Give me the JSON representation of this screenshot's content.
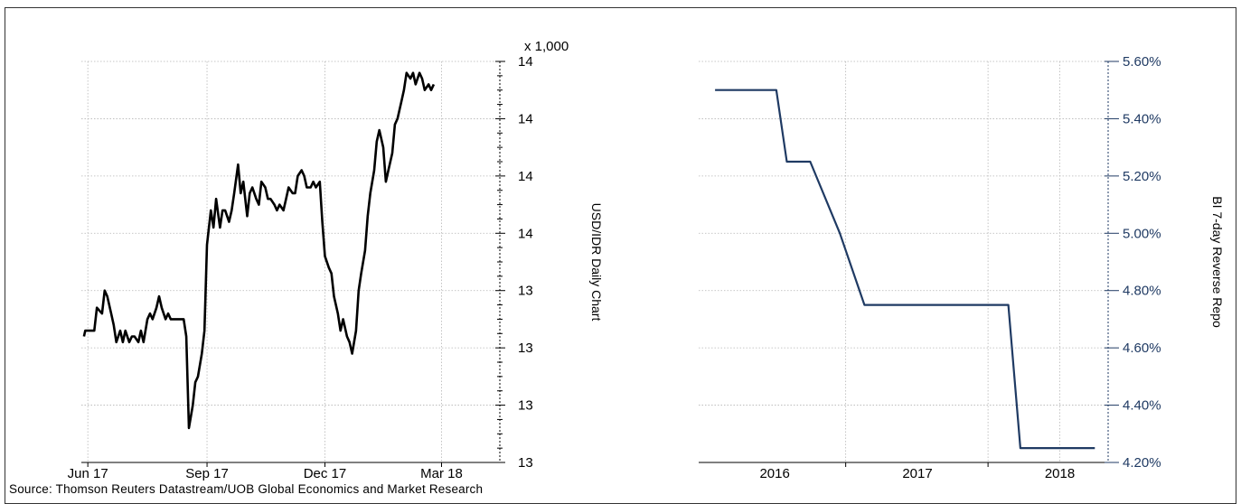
{
  "source": "Source: Thomson Reuters Datastream/UOB Global Economics and Market Research",
  "chart_data": [
    {
      "type": "line",
      "ylabel": "USD/IDR Daily Chart",
      "y_multiplier": "x 1,000",
      "x_ticks": [
        "Jun 17",
        "Sep 17",
        "Dec 17",
        "Mar 18"
      ],
      "y_ticks": [
        "14",
        "14",
        "14",
        "14",
        "13",
        "13",
        "13",
        "13"
      ],
      "ylim": [
        13.15,
        13.85
      ],
      "grid": true,
      "line_color": "#000000",
      "series": [
        {
          "x": [
            "2017-05-29",
            "2017-05-30",
            "2017-06-01",
            "2017-06-06",
            "2017-06-08",
            "2017-06-12",
            "2017-06-14",
            "2017-06-16",
            "2017-06-19",
            "2017-06-21",
            "2017-06-23",
            "2017-06-26",
            "2017-06-28",
            "2017-06-30",
            "2017-07-03",
            "2017-07-05",
            "2017-07-07",
            "2017-07-10",
            "2017-07-12",
            "2017-07-14",
            "2017-07-17",
            "2017-07-19",
            "2017-07-21",
            "2017-07-24",
            "2017-07-26",
            "2017-07-28",
            "2017-07-31",
            "2017-08-02",
            "2017-08-04",
            "2017-08-07",
            "2017-08-09",
            "2017-08-11",
            "2017-08-14",
            "2017-08-16",
            "2017-08-18",
            "2017-08-21",
            "2017-08-23",
            "2017-08-25",
            "2017-08-28",
            "2017-08-30",
            "2017-09-01",
            "2017-09-04",
            "2017-09-06",
            "2017-09-08",
            "2017-09-11",
            "2017-09-13",
            "2017-09-15",
            "2017-09-18",
            "2017-09-20",
            "2017-09-22",
            "2017-09-25",
            "2017-09-27",
            "2017-09-29",
            "2017-10-02",
            "2017-10-04",
            "2017-10-06",
            "2017-10-09",
            "2017-10-11",
            "2017-10-13",
            "2017-10-16",
            "2017-10-18",
            "2017-10-20",
            "2017-10-23",
            "2017-10-25",
            "2017-10-27",
            "2017-10-30",
            "2017-11-01",
            "2017-11-03",
            "2017-11-06",
            "2017-11-08",
            "2017-11-10",
            "2017-11-13",
            "2017-11-15",
            "2017-11-17",
            "2017-11-20",
            "2017-11-22",
            "2017-11-24",
            "2017-11-27",
            "2017-11-29",
            "2017-12-01",
            "2017-12-04",
            "2017-12-06",
            "2017-12-08",
            "2017-12-11",
            "2017-12-13",
            "2017-12-15",
            "2017-12-18",
            "2017-12-20",
            "2017-12-22",
            "2017-12-25",
            "2017-12-27",
            "2017-12-29",
            "2018-01-01",
            "2018-01-03",
            "2018-01-05",
            "2018-01-08",
            "2018-01-10",
            "2018-01-12",
            "2018-01-15",
            "2018-01-17",
            "2018-01-19",
            "2018-01-22",
            "2018-01-24",
            "2018-01-26",
            "2018-01-29",
            "2018-01-31",
            "2018-02-02",
            "2018-02-05",
            "2018-02-07",
            "2018-02-09",
            "2018-02-12",
            "2018-02-14",
            "2018-02-16",
            "2018-02-19",
            "2018-02-21",
            "2018-02-23"
          ],
          "y": [
            13.37,
            13.38,
            13.38,
            13.38,
            13.42,
            13.41,
            13.45,
            13.44,
            13.41,
            13.39,
            13.36,
            13.38,
            13.36,
            13.38,
            13.36,
            13.37,
            13.37,
            13.36,
            13.38,
            13.36,
            13.4,
            13.41,
            13.4,
            13.42,
            13.44,
            13.42,
            13.4,
            13.41,
            13.4,
            13.4,
            13.4,
            13.4,
            13.4,
            13.37,
            13.21,
            13.25,
            13.29,
            13.3,
            13.34,
            13.38,
            13.53,
            13.59,
            13.56,
            13.61,
            13.56,
            13.59,
            13.59,
            13.57,
            13.59,
            13.62,
            13.67,
            13.62,
            13.64,
            13.58,
            13.62,
            13.63,
            13.61,
            13.6,
            13.64,
            13.63,
            13.61,
            13.61,
            13.6,
            13.59,
            13.6,
            13.59,
            13.61,
            13.63,
            13.62,
            13.62,
            13.65,
            13.66,
            13.65,
            13.63,
            13.63,
            13.64,
            13.63,
            13.64,
            13.57,
            13.51,
            13.49,
            13.48,
            13.44,
            13.41,
            13.38,
            13.4,
            13.37,
            13.36,
            13.34,
            13.38,
            13.45,
            13.48,
            13.52,
            13.58,
            13.62,
            13.66,
            13.71,
            13.73,
            13.7,
            13.64,
            13.66,
            13.69,
            13.74,
            13.75,
            13.78,
            13.8,
            13.83,
            13.82,
            13.83,
            13.81,
            13.83,
            13.82,
            13.8,
            13.81,
            13.8,
            13.81
          ]
        }
      ]
    },
    {
      "type": "line",
      "ylabel": "BI 7-day Reverse Repo",
      "x_ticks": [
        "2016",
        "2017",
        "2018"
      ],
      "y_ticks": [
        "5.60%",
        "5.40%",
        "5.20%",
        "5.00%",
        "4.80%",
        "4.60%",
        "4.40%",
        "4.20%"
      ],
      "ylim": [
        4.2,
        5.6
      ],
      "grid": true,
      "line_color": "#1f3a63",
      "series": [
        {
          "x": [
            "2015-08-01",
            "2015-12-01",
            "2016-01-05",
            "2016-02-01",
            "2016-03-17",
            "2016-04-01",
            "2016-06-16",
            "2016-08-18",
            "2016-09-22",
            "2016-12-01",
            "2017-06-01",
            "2017-08-22",
            "2017-09-22",
            "2017-12-01",
            "2018-04-01"
          ],
          "y": [
            5.5,
            5.5,
            5.5,
            5.25,
            5.25,
            5.25,
            5.0,
            4.75,
            4.75,
            4.75,
            4.75,
            4.75,
            4.25,
            4.25,
            4.25
          ]
        }
      ]
    }
  ]
}
